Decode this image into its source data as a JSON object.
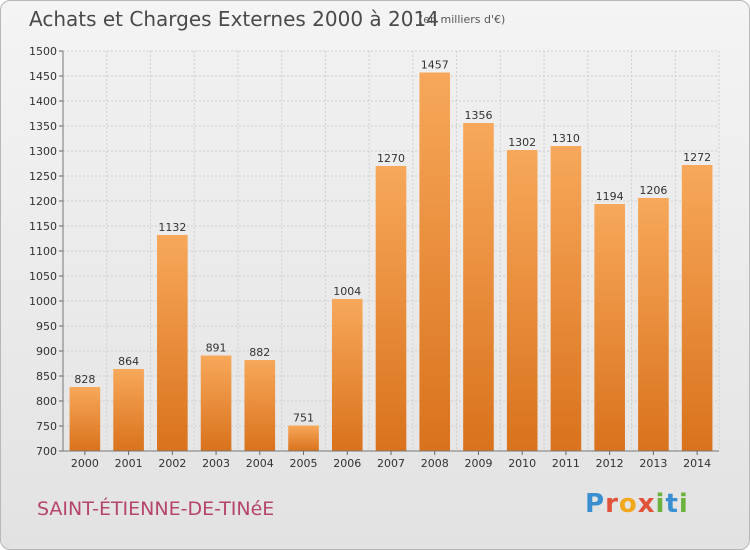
{
  "header": {
    "title": "Achats et Charges Externes 2000 à 2014",
    "subtitle": "(en milliers d'€)"
  },
  "footer": {
    "commune": "SAINT-ÉTIENNE-DE-TINéE",
    "logo": "Proxiti"
  },
  "colors": {
    "bar_top": "#f7a85a",
    "bar_bottom": "#d9721c",
    "grid": "#cfcfcf",
    "axis_text": "#333333",
    "commune_text": "#b5456a"
  },
  "chart_data": {
    "type": "bar",
    "title": "Achats et Charges Externes 2000 à 2014",
    "subtitle": "(en milliers d'€)",
    "categories": [
      "2000",
      "2001",
      "2002",
      "2003",
      "2004",
      "2005",
      "2006",
      "2007",
      "2008",
      "2009",
      "2010",
      "2011",
      "2012",
      "2013",
      "2014"
    ],
    "values": [
      828,
      864,
      1132,
      891,
      882,
      751,
      1004,
      1270,
      1457,
      1356,
      1302,
      1310,
      1194,
      1206,
      1272
    ],
    "ylim": [
      700,
      1500
    ],
    "yticks": [
      700,
      750,
      800,
      850,
      900,
      950,
      1000,
      1050,
      1100,
      1150,
      1200,
      1250,
      1300,
      1350,
      1400,
      1450,
      1500
    ],
    "grid": true,
    "data_labels": true
  }
}
